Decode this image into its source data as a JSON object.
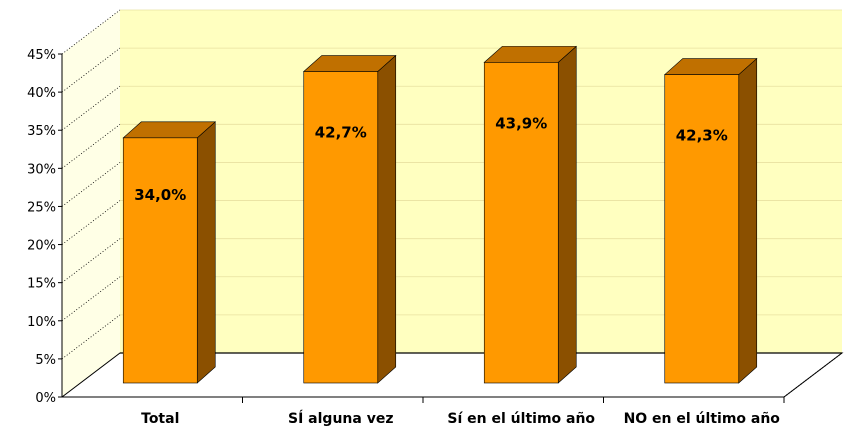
{
  "chart_data": {
    "type": "bar",
    "categories": [
      "Total",
      "SÍ alguna vez",
      "Sí en el último año",
      "NO en el último año"
    ],
    "values": [
      34.0,
      42.7,
      43.9,
      42.3
    ],
    "data_labels": [
      "34,0%",
      "42,7%",
      "43,9%",
      "42,3%"
    ],
    "y_ticks": [
      "0%",
      "5%",
      "10%",
      "15%",
      "20%",
      "25%",
      "30%",
      "35%",
      "40%",
      "45%"
    ],
    "ylim": [
      0,
      45
    ],
    "title": "",
    "xlabel": "",
    "ylabel": "",
    "legend": "none",
    "grid": true,
    "style": "3d-column",
    "colors": {
      "bar_front": "#ff9900",
      "bar_side": "#8b5000",
      "bar_top": "#c07000",
      "plot_back_wall": "#ffffc0",
      "plot_side_wall": "#ffffe6",
      "floor": "#ffffff",
      "gridline": "#000000"
    }
  }
}
